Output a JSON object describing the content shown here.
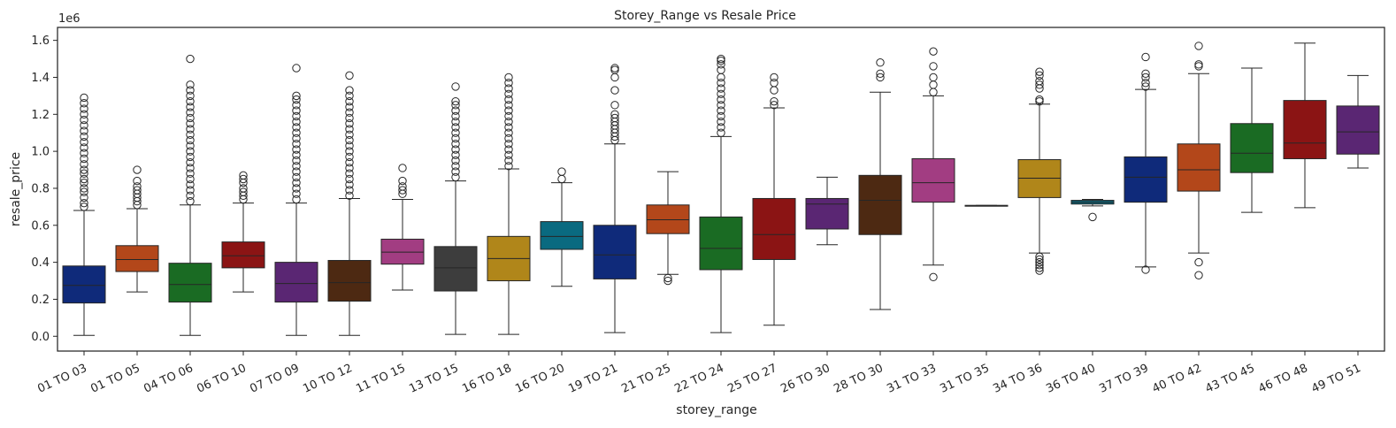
{
  "chart_data": {
    "type": "box",
    "title": "Storey_Range vs Resale Price",
    "xlabel": "storey_range",
    "ylabel": "resale_price",
    "y_scale_label": "1e6",
    "y_unit_multiplier": 1000000,
    "ylim": [
      -0.08,
      1.67
    ],
    "y_ticks": [
      0.0,
      0.2,
      0.4,
      0.6,
      0.8,
      1.0,
      1.2,
      1.4,
      1.6
    ],
    "y_tick_labels": [
      "0.0",
      "0.2",
      "0.4",
      "0.6",
      "0.8",
      "1.0",
      "1.2",
      "1.4",
      "1.6"
    ],
    "grid": false,
    "x_tick_rotation_deg": -25,
    "categories": [
      {
        "label": "01 TO 03",
        "color": "#0f2a7a",
        "whisker_low": 0.005,
        "q1": 0.18,
        "median": 0.275,
        "q3": 0.38,
        "whisker_high": 0.68,
        "outliers": [
          0.7,
          0.72,
          0.75,
          0.78,
          0.8,
          0.83,
          0.85,
          0.88,
          0.9,
          0.93,
          0.96,
          0.99,
          1.02,
          1.05,
          1.08,
          1.11,
          1.14,
          1.17,
          1.2,
          1.23,
          1.26,
          1.29
        ]
      },
      {
        "label": "01 TO 05",
        "color": "#b3471a",
        "whisker_low": 0.24,
        "q1": 0.35,
        "median": 0.415,
        "q3": 0.49,
        "whisker_high": 0.69,
        "outliers": [
          0.71,
          0.73,
          0.75,
          0.77,
          0.79,
          0.81,
          0.84,
          0.9
        ]
      },
      {
        "label": "04 TO 06",
        "color": "#1a6b23",
        "whisker_low": 0.005,
        "q1": 0.185,
        "median": 0.28,
        "q3": 0.395,
        "whisker_high": 0.71,
        "outliers": [
          0.73,
          0.76,
          0.79,
          0.82,
          0.85,
          0.88,
          0.91,
          0.94,
          0.97,
          1.0,
          1.03,
          1.06,
          1.09,
          1.12,
          1.15,
          1.18,
          1.21,
          1.24,
          1.27,
          1.3,
          1.33,
          1.36,
          1.5
        ]
      },
      {
        "label": "06 TO 10",
        "color": "#8b1414",
        "whisker_low": 0.24,
        "q1": 0.37,
        "median": 0.435,
        "q3": 0.51,
        "whisker_high": 0.72,
        "outliers": [
          0.74,
          0.76,
          0.78,
          0.8,
          0.83,
          0.85,
          0.87
        ]
      },
      {
        "label": "07 TO 09",
        "color": "#5a2673",
        "whisker_low": 0.005,
        "q1": 0.185,
        "median": 0.285,
        "q3": 0.4,
        "whisker_high": 0.72,
        "outliers": [
          0.74,
          0.77,
          0.8,
          0.83,
          0.86,
          0.89,
          0.92,
          0.95,
          0.98,
          1.01,
          1.04,
          1.07,
          1.1,
          1.13,
          1.16,
          1.19,
          1.22,
          1.25,
          1.28,
          1.3,
          1.45
        ]
      },
      {
        "label": "10 TO 12",
        "color": "#4d2912",
        "whisker_low": 0.005,
        "q1": 0.19,
        "median": 0.29,
        "q3": 0.41,
        "whisker_high": 0.745,
        "outliers": [
          0.76,
          0.79,
          0.82,
          0.85,
          0.88,
          0.91,
          0.94,
          0.97,
          1.0,
          1.03,
          1.06,
          1.09,
          1.12,
          1.15,
          1.18,
          1.21,
          1.24,
          1.27,
          1.3,
          1.33,
          1.41
        ]
      },
      {
        "label": "11 TO 15",
        "color": "#a23d82",
        "whisker_low": 0.25,
        "q1": 0.39,
        "median": 0.455,
        "q3": 0.525,
        "whisker_high": 0.74,
        "outliers": [
          0.77,
          0.79,
          0.81,
          0.84,
          0.91
        ]
      },
      {
        "label": "13 TO 15",
        "color": "#3d3d3d",
        "whisker_low": 0.01,
        "q1": 0.245,
        "median": 0.37,
        "q3": 0.485,
        "whisker_high": 0.84,
        "outliers": [
          0.86,
          0.89,
          0.92,
          0.95,
          0.98,
          1.01,
          1.04,
          1.07,
          1.1,
          1.13,
          1.16,
          1.19,
          1.22,
          1.25,
          1.27,
          1.35
        ]
      },
      {
        "label": "16 TO 18",
        "color": "#b0861a",
        "whisker_low": 0.01,
        "q1": 0.3,
        "median": 0.42,
        "q3": 0.54,
        "whisker_high": 0.905,
        "outliers": [
          0.92,
          0.95,
          0.98,
          1.01,
          1.04,
          1.07,
          1.1,
          1.13,
          1.16,
          1.19,
          1.22,
          1.25,
          1.28,
          1.31,
          1.34,
          1.37,
          1.4
        ]
      },
      {
        "label": "16 TO 20",
        "color": "#0a6a80",
        "whisker_low": 0.27,
        "q1": 0.47,
        "median": 0.54,
        "q3": 0.62,
        "whisker_high": 0.83,
        "outliers": [
          0.85,
          0.89
        ]
      },
      {
        "label": "19 TO 21",
        "color": "#0f2a7a",
        "whisker_low": 0.02,
        "q1": 0.31,
        "median": 0.44,
        "q3": 0.6,
        "whisker_high": 1.04,
        "outliers": [
          1.06,
          1.08,
          1.1,
          1.12,
          1.14,
          1.16,
          1.18,
          1.2,
          1.25,
          1.33,
          1.4,
          1.44,
          1.45
        ]
      },
      {
        "label": "21 TO 25",
        "color": "#b3471a",
        "whisker_low": 0.335,
        "q1": 0.555,
        "median": 0.63,
        "q3": 0.71,
        "whisker_high": 0.89,
        "outliers": [
          0.3,
          0.315
        ]
      },
      {
        "label": "22 TO 24",
        "color": "#1a6b23",
        "whisker_low": 0.02,
        "q1": 0.36,
        "median": 0.475,
        "q3": 0.645,
        "whisker_high": 1.08,
        "outliers": [
          1.1,
          1.13,
          1.16,
          1.19,
          1.22,
          1.25,
          1.28,
          1.31,
          1.34,
          1.37,
          1.4,
          1.44,
          1.47,
          1.49,
          1.5
        ]
      },
      {
        "label": "25 TO 27",
        "color": "#8b1414",
        "whisker_low": 0.06,
        "q1": 0.415,
        "median": 0.55,
        "q3": 0.745,
        "whisker_high": 1.235,
        "outliers": [
          1.25,
          1.27,
          1.33,
          1.37,
          1.4
        ]
      },
      {
        "label": "26 TO 30",
        "color": "#5a2673",
        "whisker_low": 0.495,
        "q1": 0.58,
        "median": 0.715,
        "q3": 0.745,
        "whisker_high": 0.86,
        "outliers": []
      },
      {
        "label": "28 TO 30",
        "color": "#4d2912",
        "whisker_low": 0.145,
        "q1": 0.55,
        "median": 0.735,
        "q3": 0.87,
        "whisker_high": 1.32,
        "outliers": [
          1.4,
          1.42,
          1.48
        ]
      },
      {
        "label": "31 TO 33",
        "color": "#a23d82",
        "whisker_low": 0.385,
        "q1": 0.725,
        "median": 0.83,
        "q3": 0.96,
        "whisker_high": 1.3,
        "outliers": [
          0.32,
          1.32,
          1.36,
          1.4,
          1.46,
          1.54
        ]
      },
      {
        "label": "31 TO 35",
        "color": "#3d3d3d",
        "whisker_low": 0.705,
        "q1": 0.705,
        "median": 0.705,
        "q3": 0.708,
        "whisker_high": 0.708,
        "outliers": []
      },
      {
        "label": "34 TO 36",
        "color": "#b0861a",
        "whisker_low": 0.45,
        "q1": 0.75,
        "median": 0.855,
        "q3": 0.955,
        "whisker_high": 1.255,
        "outliers": [
          0.355,
          0.37,
          0.385,
          0.4,
          0.415,
          0.43,
          1.27,
          1.28,
          1.34,
          1.36,
          1.38,
          1.41,
          1.43
        ]
      },
      {
        "label": "36 TO 40",
        "color": "#0a6a80",
        "whisker_low": 0.705,
        "q1": 0.715,
        "median": 0.725,
        "q3": 0.735,
        "whisker_high": 0.74,
        "outliers": [
          0.645
        ]
      },
      {
        "label": "37 TO 39",
        "color": "#0f2a7a",
        "whisker_low": 0.375,
        "q1": 0.725,
        "median": 0.86,
        "q3": 0.97,
        "whisker_high": 1.335,
        "outliers": [
          0.36,
          1.35,
          1.37,
          1.4,
          1.42,
          1.51
        ]
      },
      {
        "label": "40 TO 42",
        "color": "#b3471a",
        "whisker_low": 0.45,
        "q1": 0.785,
        "median": 0.9,
        "q3": 1.04,
        "whisker_high": 1.42,
        "outliers": [
          0.33,
          0.4,
          1.46,
          1.47,
          1.57
        ]
      },
      {
        "label": "43 TO 45",
        "color": "#1a6b23",
        "whisker_low": 0.67,
        "q1": 0.885,
        "median": 0.99,
        "q3": 1.15,
        "whisker_high": 1.45,
        "outliers": []
      },
      {
        "label": "46 TO 48",
        "color": "#8b1414",
        "whisker_low": 0.695,
        "q1": 0.96,
        "median": 1.045,
        "q3": 1.275,
        "whisker_high": 1.585,
        "outliers": []
      },
      {
        "label": "49 TO 51",
        "color": "#5a2673",
        "whisker_low": 0.91,
        "q1": 0.985,
        "median": 1.105,
        "q3": 1.245,
        "whisker_high": 1.41,
        "outliers": []
      }
    ]
  }
}
